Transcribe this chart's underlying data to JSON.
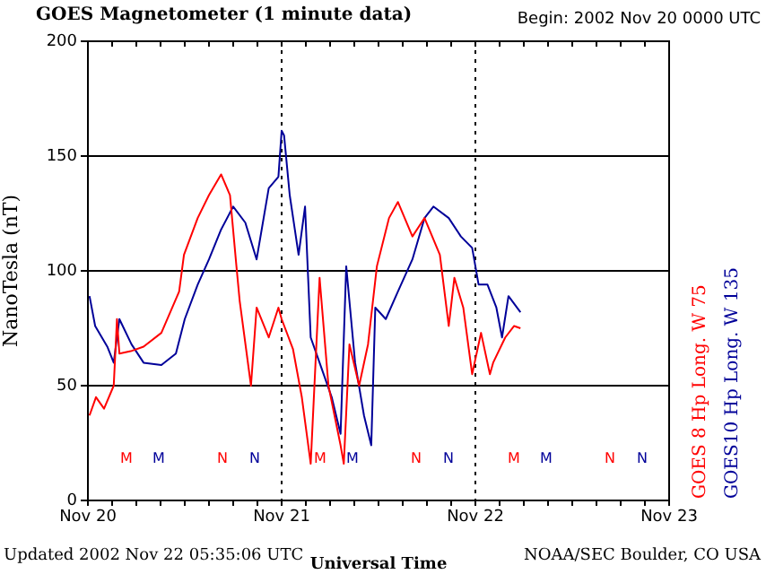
{
  "chart_data": {
    "type": "line",
    "title": "GOES Magnetometer (1 minute data)",
    "subtitle": "Begin:  2002 Nov 20 0000 UTC",
    "xlabel": "Universal Time",
    "ylabel": "NanoTesla (nT)",
    "xlim": [
      "2002-11-20",
      "2002-11-23"
    ],
    "xticks": [
      {
        "value": "2002-11-20",
        "label": "Nov 20"
      },
      {
        "value": "2002-11-20T03:00",
        "label": null
      },
      {
        "value": "2002-11-20T06:00",
        "label": null
      },
      {
        "value": "2002-11-20T09:00",
        "label": null
      },
      {
        "value": "2002-11-20T12:00",
        "label": null
      },
      {
        "value": "2002-11-20T15:00",
        "label": null
      },
      {
        "value": "2002-11-20T18:00",
        "label": null
      },
      {
        "value": "2002-11-20T21:00",
        "label": null
      },
      {
        "value": "2002-11-21",
        "label": "Nov 21"
      },
      {
        "value": "2002-11-21T03:00",
        "label": null
      },
      {
        "value": "2002-11-21T06:00",
        "label": null
      },
      {
        "value": "2002-11-21T09:00",
        "label": null
      },
      {
        "value": "2002-11-21T12:00",
        "label": null
      },
      {
        "value": "2002-11-21T15:00",
        "label": null
      },
      {
        "value": "2002-11-21T18:00",
        "label": null
      },
      {
        "value": "2002-11-21T21:00",
        "label": null
      },
      {
        "value": "2002-11-22",
        "label": "Nov 22"
      },
      {
        "value": "2002-11-22T03:00",
        "label": null
      },
      {
        "value": "2002-11-22T06:00",
        "label": null
      },
      {
        "value": "2002-11-22T09:00",
        "label": null
      },
      {
        "value": "2002-11-22T12:00",
        "label": null
      },
      {
        "value": "2002-11-22T15:00",
        "label": null
      },
      {
        "value": "2002-11-22T18:00",
        "label": null
      },
      {
        "value": "2002-11-22T21:00",
        "label": null
      },
      {
        "value": "2002-11-23",
        "label": "Nov 23"
      }
    ],
    "ylim": [
      0,
      200
    ],
    "yticks": [
      0,
      50,
      100,
      150,
      200
    ],
    "grid": "y",
    "legend": "right",
    "marker": "none",
    "line_style": "solid",
    "series": [
      {
        "name": "GOES 8 Hp  Long. W 75",
        "color": "#ff0000",
        "x": [
          "2002-11-20T00:12",
          "2002-11-20T01:00",
          "2002-11-20T02:00",
          "2002-11-20T03:12",
          "2002-11-20T03:36",
          "2002-11-20T03:54",
          "2002-11-20T05:18",
          "2002-11-20T06:54",
          "2002-11-20T09:06",
          "2002-11-20T11:18",
          "2002-11-20T11:54",
          "2002-11-20T13:36",
          "2002-11-20T15:00",
          "2002-11-20T16:30",
          "2002-11-20T17:36",
          "2002-11-20T18:24",
          "2002-11-20T18:48",
          "2002-11-20T20:12",
          "2002-11-20T20:54",
          "2002-11-20T22:24",
          "2002-11-20T23:36",
          "2002-11-21T00:00",
          "2002-11-21T01:24",
          "2002-11-21T02:30",
          "2002-11-21T03:36",
          "2002-11-21T04:42",
          "2002-11-21T05:48",
          "2002-11-21T07:18",
          "2002-11-21T07:42",
          "2002-11-21T08:24",
          "2002-11-21T09:36",
          "2002-11-21T10:42",
          "2002-11-21T11:48",
          "2002-11-21T13:18",
          "2002-11-21T14:24",
          "2002-11-21T16:12",
          "2002-11-21T17:42",
          "2002-11-21T19:36",
          "2002-11-21T20:42",
          "2002-11-21T21:24",
          "2002-11-21T22:30",
          "2002-11-21T23:36",
          "2002-11-22T00:42",
          "2002-11-22T01:48",
          "2002-11-22T02:12",
          "2002-11-22T03:42",
          "2002-11-22T04:48",
          "2002-11-22T05:35"
        ],
        "values": [
          37,
          45,
          40,
          50,
          79,
          64,
          65,
          67,
          73,
          91,
          107,
          123,
          133,
          142,
          133,
          102,
          87,
          50,
          84,
          71,
          84,
          79,
          66,
          45,
          16,
          97,
          50,
          24,
          16,
          68,
          50,
          68,
          102,
          123,
          130,
          115,
          123,
          107,
          76,
          97,
          84,
          55,
          73,
          55,
          60,
          71,
          76,
          75
        ]
      },
      {
        "name": "GOES10 Hp  Long. W 135",
        "color": "#000099",
        "x": [
          "2002-11-20T00:12",
          "2002-11-20T00:54",
          "2002-11-20T02:24",
          "2002-11-20T03:12",
          "2002-11-20T03:54",
          "2002-11-20T05:24",
          "2002-11-20T06:54",
          "2002-11-20T09:06",
          "2002-11-20T10:54",
          "2002-11-20T12:00",
          "2002-11-20T13:36",
          "2002-11-20T15:00",
          "2002-11-20T16:30",
          "2002-11-20T18:00",
          "2002-11-20T19:30",
          "2002-11-20T20:54",
          "2002-11-20T22:24",
          "2002-11-20T23:36",
          "2002-11-21T00:00",
          "2002-11-21T00:18",
          "2002-11-21T01:00",
          "2002-11-21T02:06",
          "2002-11-21T02:54",
          "2002-11-21T03:36",
          "2002-11-21T04:42",
          "2002-11-21T06:12",
          "2002-11-21T07:18",
          "2002-11-21T08:00",
          "2002-11-21T09:06",
          "2002-11-21T10:12",
          "2002-11-21T11:06",
          "2002-11-21T11:36",
          "2002-11-21T12:54",
          "2002-11-21T14:24",
          "2002-11-21T16:12",
          "2002-11-21T17:42",
          "2002-11-21T18:48",
          "2002-11-21T20:42",
          "2002-11-21T22:12",
          "2002-11-21T23:36",
          "2002-11-22T00:24",
          "2002-11-22T01:30",
          "2002-11-22T02:36",
          "2002-11-22T03:18",
          "2002-11-22T04:06",
          "2002-11-22T05:35"
        ],
        "values": [
          89,
          76,
          67,
          60,
          79,
          68,
          60,
          59,
          64,
          79,
          94,
          105,
          118,
          128,
          121,
          105,
          136,
          141,
          161,
          159,
          133,
          107,
          128,
          71,
          60,
          45,
          29,
          102,
          60,
          37,
          24,
          84,
          79,
          91,
          105,
          123,
          128,
          123,
          115,
          110,
          94,
          94,
          84,
          71,
          89,
          82
        ]
      }
    ],
    "ref_lines": [
      {
        "axis": "x",
        "value": "2002-11-21",
        "color": "#000000",
        "line_style": "dotted"
      },
      {
        "axis": "x",
        "value": "2002-11-22",
        "color": "#000000",
        "line_style": "dotted"
      }
    ],
    "annotations": [
      "Updated 2002 Nov 22 05:35:06 UTC",
      "NOAA/SEC Boulder, CO USA",
      "M",
      "M",
      "N",
      "N",
      "M",
      "M",
      "N",
      "N",
      "M",
      "M",
      "N",
      "N"
    ]
  }
}
